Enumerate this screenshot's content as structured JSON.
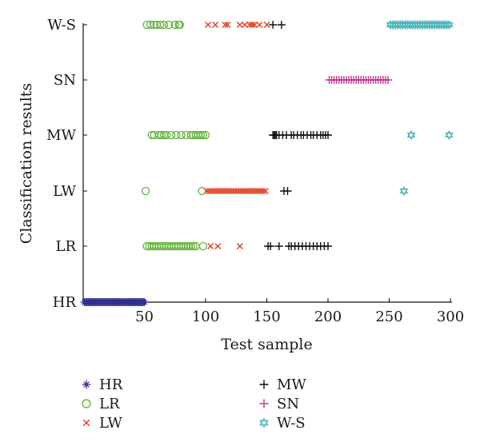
{
  "chart_data": {
    "type": "scatter",
    "title": "",
    "xlabel": "Test sample",
    "ylabel": "Classification results",
    "xlim": [
      0,
      300
    ],
    "xticks": [
      50,
      100,
      150,
      200,
      250,
      300
    ],
    "categories": [
      "HR",
      "LR",
      "LW",
      "MW",
      "SN",
      "W-S"
    ],
    "grid": false,
    "legend_position": "bottom",
    "legend_columns": 2,
    "series": [
      {
        "name": "HR",
        "marker": "asterisk",
        "color": "#2e3192",
        "points": [
          {
            "x": 1,
            "y": "HR"
          },
          {
            "x": 2,
            "y": "HR"
          },
          {
            "x": 3,
            "y": "HR"
          },
          {
            "x": 4,
            "y": "HR"
          },
          {
            "x": 5,
            "y": "HR"
          },
          {
            "x": 6,
            "y": "HR"
          },
          {
            "x": 7,
            "y": "HR"
          },
          {
            "x": 8,
            "y": "HR"
          },
          {
            "x": 9,
            "y": "HR"
          },
          {
            "x": 10,
            "y": "HR"
          },
          {
            "x": 11,
            "y": "HR"
          },
          {
            "x": 12,
            "y": "HR"
          },
          {
            "x": 13,
            "y": "HR"
          },
          {
            "x": 14,
            "y": "HR"
          },
          {
            "x": 15,
            "y": "HR"
          },
          {
            "x": 16,
            "y": "HR"
          },
          {
            "x": 17,
            "y": "HR"
          },
          {
            "x": 18,
            "y": "HR"
          },
          {
            "x": 19,
            "y": "HR"
          },
          {
            "x": 20,
            "y": "HR"
          },
          {
            "x": 21,
            "y": "HR"
          },
          {
            "x": 22,
            "y": "HR"
          },
          {
            "x": 23,
            "y": "HR"
          },
          {
            "x": 24,
            "y": "HR"
          },
          {
            "x": 25,
            "y": "HR"
          },
          {
            "x": 26,
            "y": "HR"
          },
          {
            "x": 27,
            "y": "HR"
          },
          {
            "x": 28,
            "y": "HR"
          },
          {
            "x": 29,
            "y": "HR"
          },
          {
            "x": 30,
            "y": "HR"
          },
          {
            "x": 31,
            "y": "HR"
          },
          {
            "x": 32,
            "y": "HR"
          },
          {
            "x": 33,
            "y": "HR"
          },
          {
            "x": 34,
            "y": "HR"
          },
          {
            "x": 35,
            "y": "HR"
          },
          {
            "x": 36,
            "y": "HR"
          },
          {
            "x": 37,
            "y": "HR"
          },
          {
            "x": 38,
            "y": "HR"
          },
          {
            "x": 39,
            "y": "HR"
          },
          {
            "x": 40,
            "y": "HR"
          },
          {
            "x": 41,
            "y": "HR"
          },
          {
            "x": 42,
            "y": "HR"
          },
          {
            "x": 43,
            "y": "HR"
          },
          {
            "x": 44,
            "y": "HR"
          },
          {
            "x": 45,
            "y": "HR"
          },
          {
            "x": 46,
            "y": "HR"
          },
          {
            "x": 47,
            "y": "HR"
          },
          {
            "x": 48,
            "y": "HR"
          },
          {
            "x": 49,
            "y": "HR"
          },
          {
            "x": 50,
            "y": "HR"
          }
        ]
      },
      {
        "name": "LR",
        "marker": "circle",
        "color": "#5fb33a",
        "points": [
          {
            "x": 52,
            "y": "W-S"
          },
          {
            "x": 55,
            "y": "W-S"
          },
          {
            "x": 58,
            "y": "W-S"
          },
          {
            "x": 60,
            "y": "W-S"
          },
          {
            "x": 63,
            "y": "W-S"
          },
          {
            "x": 66,
            "y": "W-S"
          },
          {
            "x": 70,
            "y": "W-S"
          },
          {
            "x": 75,
            "y": "W-S"
          },
          {
            "x": 78,
            "y": "W-S"
          },
          {
            "x": 79,
            "y": "W-S"
          },
          {
            "x": 56,
            "y": "MW"
          },
          {
            "x": 58,
            "y": "MW"
          },
          {
            "x": 62,
            "y": "MW"
          },
          {
            "x": 64,
            "y": "MW"
          },
          {
            "x": 66,
            "y": "MW"
          },
          {
            "x": 68,
            "y": "MW"
          },
          {
            "x": 72,
            "y": "MW"
          },
          {
            "x": 76,
            "y": "MW"
          },
          {
            "x": 80,
            "y": "MW"
          },
          {
            "x": 84,
            "y": "MW"
          },
          {
            "x": 88,
            "y": "MW"
          },
          {
            "x": 90,
            "y": "MW"
          },
          {
            "x": 92,
            "y": "MW"
          },
          {
            "x": 94,
            "y": "MW"
          },
          {
            "x": 96,
            "y": "MW"
          },
          {
            "x": 98,
            "y": "MW"
          },
          {
            "x": 100,
            "y": "MW"
          },
          {
            "x": 51,
            "y": "LW"
          },
          {
            "x": 97,
            "y": "LW"
          },
          {
            "x": 52,
            "y": "LR"
          },
          {
            "x": 54,
            "y": "LR"
          },
          {
            "x": 56,
            "y": "LR"
          },
          {
            "x": 58,
            "y": "LR"
          },
          {
            "x": 60,
            "y": "LR"
          },
          {
            "x": 62,
            "y": "LR"
          },
          {
            "x": 64,
            "y": "LR"
          },
          {
            "x": 66,
            "y": "LR"
          },
          {
            "x": 68,
            "y": "LR"
          },
          {
            "x": 70,
            "y": "LR"
          },
          {
            "x": 72,
            "y": "LR"
          },
          {
            "x": 74,
            "y": "LR"
          },
          {
            "x": 76,
            "y": "LR"
          },
          {
            "x": 78,
            "y": "LR"
          },
          {
            "x": 80,
            "y": "LR"
          },
          {
            "x": 82,
            "y": "LR"
          },
          {
            "x": 84,
            "y": "LR"
          },
          {
            "x": 86,
            "y": "LR"
          },
          {
            "x": 88,
            "y": "LR"
          },
          {
            "x": 90,
            "y": "LR"
          },
          {
            "x": 92,
            "y": "LR"
          },
          {
            "x": 98,
            "y": "LR"
          }
        ]
      },
      {
        "name": "LW",
        "marker": "x",
        "color": "#e23b1c",
        "points": [
          {
            "x": 102,
            "y": "W-S"
          },
          {
            "x": 108,
            "y": "W-S"
          },
          {
            "x": 116,
            "y": "W-S"
          },
          {
            "x": 118,
            "y": "W-S"
          },
          {
            "x": 128,
            "y": "W-S"
          },
          {
            "x": 132,
            "y": "W-S"
          },
          {
            "x": 136,
            "y": "W-S"
          },
          {
            "x": 138,
            "y": "W-S"
          },
          {
            "x": 140,
            "y": "W-S"
          },
          {
            "x": 144,
            "y": "W-S"
          },
          {
            "x": 150,
            "y": "W-S"
          },
          {
            "x": 101,
            "y": "LW"
          },
          {
            "x": 103,
            "y": "LW"
          },
          {
            "x": 105,
            "y": "LW"
          },
          {
            "x": 107,
            "y": "LW"
          },
          {
            "x": 109,
            "y": "LW"
          },
          {
            "x": 111,
            "y": "LW"
          },
          {
            "x": 113,
            "y": "LW"
          },
          {
            "x": 115,
            "y": "LW"
          },
          {
            "x": 117,
            "y": "LW"
          },
          {
            "x": 119,
            "y": "LW"
          },
          {
            "x": 121,
            "y": "LW"
          },
          {
            "x": 123,
            "y": "LW"
          },
          {
            "x": 125,
            "y": "LW"
          },
          {
            "x": 127,
            "y": "LW"
          },
          {
            "x": 129,
            "y": "LW"
          },
          {
            "x": 131,
            "y": "LW"
          },
          {
            "x": 133,
            "y": "LW"
          },
          {
            "x": 135,
            "y": "LW"
          },
          {
            "x": 137,
            "y": "LW"
          },
          {
            "x": 139,
            "y": "LW"
          },
          {
            "x": 141,
            "y": "LW"
          },
          {
            "x": 143,
            "y": "LW"
          },
          {
            "x": 145,
            "y": "LW"
          },
          {
            "x": 147,
            "y": "LW"
          },
          {
            "x": 149,
            "y": "LW"
          },
          {
            "x": 104,
            "y": "LR"
          },
          {
            "x": 110,
            "y": "LR"
          },
          {
            "x": 128,
            "y": "LR"
          }
        ]
      },
      {
        "name": "MW",
        "marker": "plus",
        "color": "#111111",
        "points": [
          {
            "x": 155,
            "y": "W-S"
          },
          {
            "x": 162,
            "y": "W-S"
          },
          {
            "x": 155,
            "y": "MW"
          },
          {
            "x": 156,
            "y": "MW"
          },
          {
            "x": 157,
            "y": "MW"
          },
          {
            "x": 158,
            "y": "MW"
          },
          {
            "x": 160,
            "y": "MW"
          },
          {
            "x": 163,
            "y": "MW"
          },
          {
            "x": 166,
            "y": "MW"
          },
          {
            "x": 170,
            "y": "MW"
          },
          {
            "x": 172,
            "y": "MW"
          },
          {
            "x": 175,
            "y": "MW"
          },
          {
            "x": 178,
            "y": "MW"
          },
          {
            "x": 180,
            "y": "MW"
          },
          {
            "x": 183,
            "y": "MW"
          },
          {
            "x": 186,
            "y": "MW"
          },
          {
            "x": 188,
            "y": "MW"
          },
          {
            "x": 191,
            "y": "MW"
          },
          {
            "x": 194,
            "y": "MW"
          },
          {
            "x": 196,
            "y": "MW"
          },
          {
            "x": 198,
            "y": "MW"
          },
          {
            "x": 200,
            "y": "MW"
          },
          {
            "x": 164,
            "y": "LW"
          },
          {
            "x": 167,
            "y": "LW"
          },
          {
            "x": 151,
            "y": "LR"
          },
          {
            "x": 153,
            "y": "LR"
          },
          {
            "x": 160,
            "y": "LR"
          },
          {
            "x": 168,
            "y": "LR"
          },
          {
            "x": 170,
            "y": "LR"
          },
          {
            "x": 173,
            "y": "LR"
          },
          {
            "x": 176,
            "y": "LR"
          },
          {
            "x": 179,
            "y": "LR"
          },
          {
            "x": 182,
            "y": "LR"
          },
          {
            "x": 185,
            "y": "LR"
          },
          {
            "x": 188,
            "y": "LR"
          },
          {
            "x": 191,
            "y": "LR"
          },
          {
            "x": 194,
            "y": "LR"
          },
          {
            "x": 197,
            "y": "LR"
          },
          {
            "x": 200,
            "y": "LR"
          }
        ]
      },
      {
        "name": "SN",
        "marker": "plus",
        "color": "#c2388f",
        "points": [
          {
            "x": 201,
            "y": "SN"
          },
          {
            "x": 203,
            "y": "SN"
          },
          {
            "x": 205,
            "y": "SN"
          },
          {
            "x": 207,
            "y": "SN"
          },
          {
            "x": 209,
            "y": "SN"
          },
          {
            "x": 211,
            "y": "SN"
          },
          {
            "x": 213,
            "y": "SN"
          },
          {
            "x": 215,
            "y": "SN"
          },
          {
            "x": 217,
            "y": "SN"
          },
          {
            "x": 219,
            "y": "SN"
          },
          {
            "x": 221,
            "y": "SN"
          },
          {
            "x": 223,
            "y": "SN"
          },
          {
            "x": 225,
            "y": "SN"
          },
          {
            "x": 227,
            "y": "SN"
          },
          {
            "x": 229,
            "y": "SN"
          },
          {
            "x": 231,
            "y": "SN"
          },
          {
            "x": 233,
            "y": "SN"
          },
          {
            "x": 235,
            "y": "SN"
          },
          {
            "x": 237,
            "y": "SN"
          },
          {
            "x": 239,
            "y": "SN"
          },
          {
            "x": 241,
            "y": "SN"
          },
          {
            "x": 243,
            "y": "SN"
          },
          {
            "x": 245,
            "y": "SN"
          },
          {
            "x": 247,
            "y": "SN"
          },
          {
            "x": 249,
            "y": "SN"
          }
        ]
      },
      {
        "name": "W-S",
        "marker": "hexagram",
        "color": "#4fb3b6",
        "points": [
          {
            "x": 251,
            "y": "W-S"
          },
          {
            "x": 253,
            "y": "W-S"
          },
          {
            "x": 255,
            "y": "W-S"
          },
          {
            "x": 257,
            "y": "W-S"
          },
          {
            "x": 259,
            "y": "W-S"
          },
          {
            "x": 261,
            "y": "W-S"
          },
          {
            "x": 263,
            "y": "W-S"
          },
          {
            "x": 265,
            "y": "W-S"
          },
          {
            "x": 267,
            "y": "W-S"
          },
          {
            "x": 269,
            "y": "W-S"
          },
          {
            "x": 271,
            "y": "W-S"
          },
          {
            "x": 273,
            "y": "W-S"
          },
          {
            "x": 275,
            "y": "W-S"
          },
          {
            "x": 277,
            "y": "W-S"
          },
          {
            "x": 279,
            "y": "W-S"
          },
          {
            "x": 281,
            "y": "W-S"
          },
          {
            "x": 283,
            "y": "W-S"
          },
          {
            "x": 285,
            "y": "W-S"
          },
          {
            "x": 287,
            "y": "W-S"
          },
          {
            "x": 289,
            "y": "W-S"
          },
          {
            "x": 291,
            "y": "W-S"
          },
          {
            "x": 293,
            "y": "W-S"
          },
          {
            "x": 295,
            "y": "W-S"
          },
          {
            "x": 297,
            "y": "W-S"
          },
          {
            "x": 299,
            "y": "W-S"
          },
          {
            "x": 268,
            "y": "MW"
          },
          {
            "x": 299,
            "y": "MW"
          },
          {
            "x": 262,
            "y": "LW"
          }
        ]
      }
    ]
  }
}
